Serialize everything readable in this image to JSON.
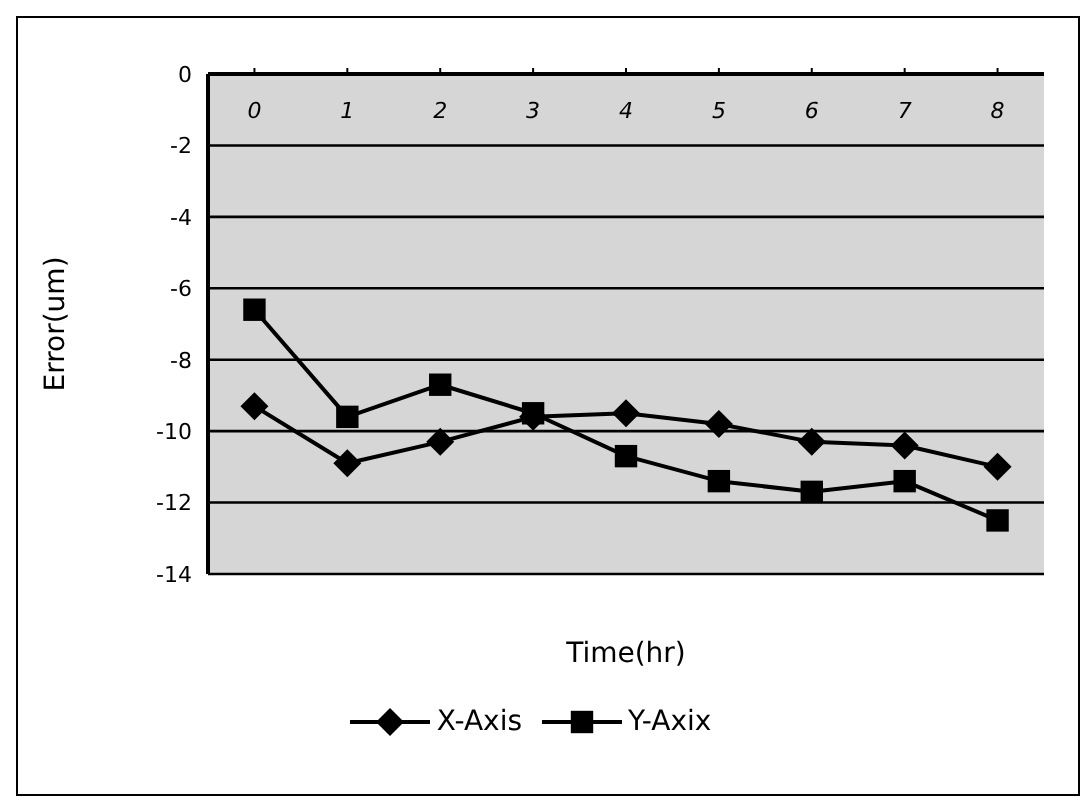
{
  "chart_data": {
    "type": "line",
    "xlabel": "Time(hr)",
    "ylabel": "Error(um)",
    "categories": [
      "0",
      "1",
      "2",
      "3",
      "4",
      "5",
      "6",
      "7",
      "8"
    ],
    "series": [
      {
        "name": "X-Axis",
        "color": "#000000",
        "marker": "diamond",
        "values": [
          -9.3,
          -10.9,
          -10.3,
          -9.6,
          -9.5,
          -9.8,
          -10.3,
          -10.4,
          -11.0
        ]
      },
      {
        "name": "Y-Axix",
        "color": "#000000",
        "marker": "square",
        "values": [
          -6.6,
          -9.6,
          -8.7,
          -9.5,
          -10.7,
          -11.4,
          -11.7,
          -11.4,
          -12.5
        ]
      }
    ],
    "ylim": [
      -14,
      0
    ],
    "yticks": [
      -14,
      -12,
      -10,
      -8,
      -6,
      -4,
      -2,
      0
    ],
    "grid": "y",
    "legend": "bottom",
    "line_style": "solid"
  }
}
